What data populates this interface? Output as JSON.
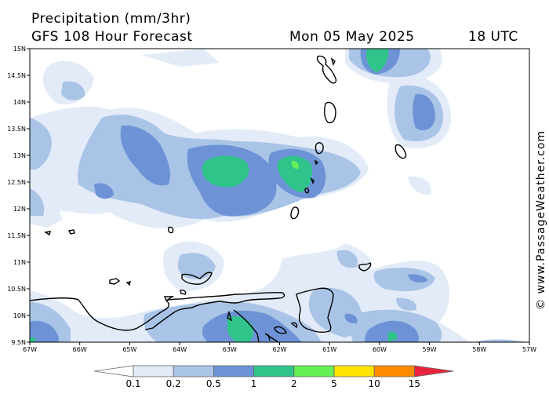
{
  "header": {
    "title": "Precipitation (mm/3hr)",
    "subtitle": "GFS 108 Hour Forecast",
    "valid_date": "Mon 05 May 2025",
    "valid_time": "18 UTC"
  },
  "credit": "© www.PassageWeather.com",
  "axes": {
    "lat_labels": [
      "15N",
      "14.5N",
      "14N",
      "13.5N",
      "13N",
      "12.5N",
      "12N",
      "11.5N",
      "11N",
      "10.5N",
      "10N",
      "9.5N"
    ],
    "lon_labels": [
      "67W",
      "66W",
      "65W",
      "64W",
      "63W",
      "62W",
      "61W",
      "60W",
      "59W",
      "58W",
      "57W"
    ]
  },
  "legend": {
    "labels": [
      "0.1",
      "0.2",
      "0.5",
      "1",
      "2",
      "5",
      "10",
      "15"
    ],
    "colors": [
      "#ffffff",
      "#e2ebf7",
      "#a9c4e6",
      "#6d93d6",
      "#30c48a",
      "#66ee55",
      "#ffe400",
      "#ff8c00",
      "#e8243c"
    ]
  },
  "palette": {
    "p01": "#e2ebf7",
    "p02": "#a9c4e6",
    "p05": "#6d93d6",
    "p1": "#30c48a",
    "p2": "#66ee55"
  }
}
